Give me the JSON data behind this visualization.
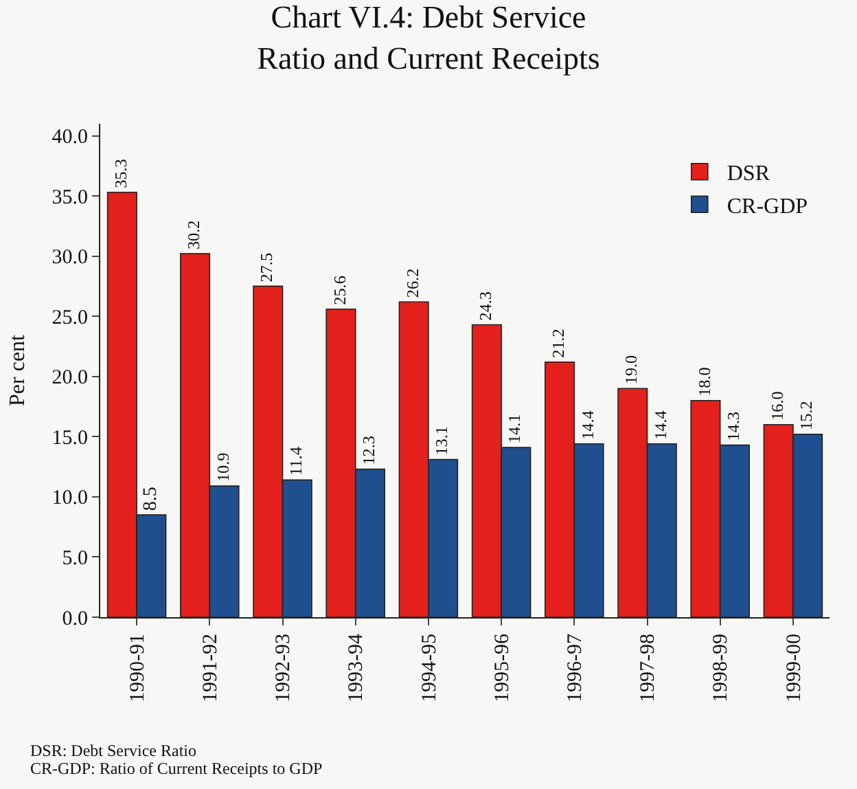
{
  "chart_data": {
    "type": "bar",
    "title": "Chart VI.4: Debt Service\nRatio and Current Receipts",
    "ylabel": "Per cent",
    "categories": [
      "1990-91",
      "1991-92",
      "1992-93",
      "1993-94",
      "1994-95",
      "1995-96",
      "1996-97",
      "1997-98",
      "1998-99",
      "1999-00"
    ],
    "series": [
      {
        "name": "DSR",
        "color": "#e3201b",
        "values": [
          35.3,
          30.2,
          27.5,
          25.6,
          26.2,
          24.3,
          21.2,
          19.0,
          18.0,
          16.0
        ],
        "value_labels": [
          "35.3",
          "30.2",
          "27.5",
          "25.6",
          "26.2",
          "24.3",
          "21.2",
          "19.0",
          "18.0",
          "16.0"
        ]
      },
      {
        "name": "CR-GDP",
        "color": "#1f4f8f",
        "values": [
          8.5,
          10.9,
          11.4,
          12.3,
          13.1,
          14.1,
          14.4,
          14.4,
          14.3,
          15.2
        ],
        "value_labels": [
          "8.5",
          "10.9",
          "11.4",
          "12.3",
          "13.1",
          "14.1",
          "14.4",
          "14.4",
          "14.3",
          "15.2"
        ]
      }
    ],
    "ylim": [
      0,
      41
    ],
    "yticks": [
      {
        "value": 0,
        "label": "0.0"
      },
      {
        "value": 5,
        "label": "5.0"
      },
      {
        "value": 10,
        "label": "10.0"
      },
      {
        "value": 15,
        "label": "15.0"
      },
      {
        "value": 20,
        "label": "20.0"
      },
      {
        "value": 25,
        "label": "25.0"
      },
      {
        "value": 30,
        "label": "30.0"
      },
      {
        "value": 35,
        "label": "35.0"
      },
      {
        "value": 40,
        "label": "40.0"
      }
    ],
    "legend": "top right",
    "grid": false,
    "annotations": [
      "DSR: Debt Service Ratio",
      "CR-GDP: Ratio of Current Receipts to GDP"
    ]
  }
}
